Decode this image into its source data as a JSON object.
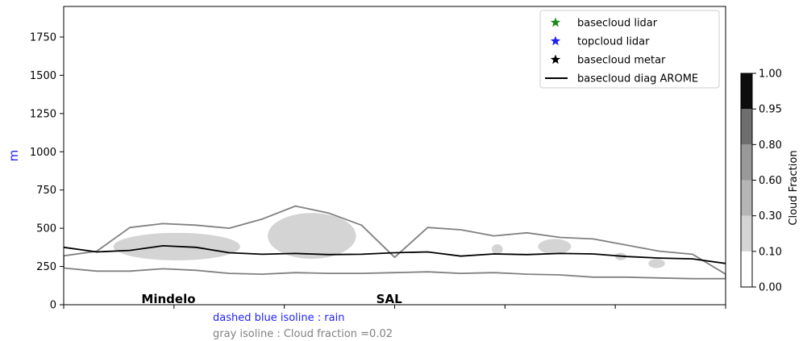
{
  "chart_data": {
    "type": "area",
    "title": "",
    "ylabel": "m",
    "ylim": [
      0,
      1950
    ],
    "yticks": [
      0,
      250,
      500,
      750,
      1000,
      1250,
      1500,
      1750
    ],
    "ytick_labels": [
      "0",
      "250",
      "500",
      "750",
      "1000",
      "1250",
      "1500",
      "1750"
    ],
    "xlim": [
      0,
      6
    ],
    "xticks": [
      0,
      1,
      2,
      3,
      4,
      5,
      6
    ],
    "places": [
      {
        "name": "Mindelo",
        "x": 0.95
      },
      {
        "name": "SAL",
        "x": 2.95
      }
    ],
    "legend": {
      "position": "top-right",
      "entries": [
        {
          "label": "basecloud lidar",
          "marker": "star",
          "color": "#1a8a1a"
        },
        {
          "label": "topcloud lidar",
          "marker": "star",
          "color": "#1f1fff"
        },
        {
          "label": "basecloud metar",
          "marker": "star",
          "color": "#000000"
        },
        {
          "label": "basecloud diag AROME",
          "marker": "line",
          "color": "#000000"
        }
      ]
    },
    "series": [
      {
        "name": "basecloud diag AROME",
        "x": [
          0,
          0.3,
          0.6,
          0.9,
          1.2,
          1.5,
          1.8,
          2.1,
          2.4,
          2.7,
          3.0,
          3.3,
          3.6,
          3.9,
          4.2,
          4.5,
          4.8,
          5.1,
          5.4,
          5.7,
          6.0
        ],
        "values": [
          375,
          345,
          355,
          385,
          375,
          340,
          330,
          335,
          328,
          330,
          340,
          345,
          318,
          332,
          328,
          335,
          332,
          315,
          305,
          300,
          270
        ]
      }
    ],
    "cloud_fraction_levels": {
      "x": [
        0,
        0.3,
        0.6,
        0.9,
        1.2,
        1.5,
        1.8,
        2.1,
        2.4,
        2.7,
        3.0,
        3.3,
        3.6,
        3.9,
        4.2,
        4.5,
        4.8,
        5.1,
        5.4,
        5.7,
        6.0
      ],
      "isoline_top": [
        320,
        350,
        505,
        530,
        520,
        500,
        560,
        645,
        600,
        520,
        310,
        505,
        490,
        450,
        470,
        440,
        430,
        390,
        350,
        330,
        200
      ],
      "isoline_bottom": [
        240,
        220,
        220,
        235,
        225,
        205,
        200,
        210,
        205,
        205,
        210,
        215,
        205,
        210,
        200,
        195,
        180,
        180,
        175,
        170,
        170
      ],
      "shaded_regions": [
        {
          "level": "0.10-0.30",
          "x_start": 0.45,
          "x_end": 1.6,
          "bottom": 290,
          "top": 470
        },
        {
          "level": "0.10-0.30",
          "x_start": 1.85,
          "x_end": 2.65,
          "bottom": 300,
          "top": 600
        },
        {
          "level": "0.10-0.30",
          "x_start": 3.88,
          "x_end": 3.98,
          "bottom": 330,
          "top": 395
        },
        {
          "level": "0.10-0.30",
          "x_start": 4.3,
          "x_end": 4.6,
          "bottom": 330,
          "top": 430
        },
        {
          "level": "0.10-0.30",
          "x_start": 5.0,
          "x_end": 5.1,
          "bottom": 290,
          "top": 340
        },
        {
          "level": "0.10-0.30",
          "x_start": 5.3,
          "x_end": 5.45,
          "bottom": 240,
          "top": 300
        }
      ]
    },
    "colorbar": {
      "label": "Cloud Fraction",
      "levels": [
        0.0,
        0.1,
        0.3,
        0.6,
        0.8,
        0.95,
        1.0
      ],
      "tick_labels": [
        "0.00",
        "0.10",
        "0.30",
        "0.60",
        "0.80",
        "0.95",
        "1.00"
      ],
      "colors": [
        "#ffffff",
        "#d4d4d4",
        "#b5b5b5",
        "#999999",
        "#6e6e6e",
        "#0d0d0d"
      ]
    }
  },
  "annotations": {
    "rain_note": "dashed blue isoline : rain",
    "rain_note_color": "#1f1fff",
    "cloud_note": "gray isoline : Cloud fraction =0.02",
    "cloud_note_color": "#808080",
    "top_partial_text": "...",
    "top_partial_color": "#1f1fff"
  }
}
